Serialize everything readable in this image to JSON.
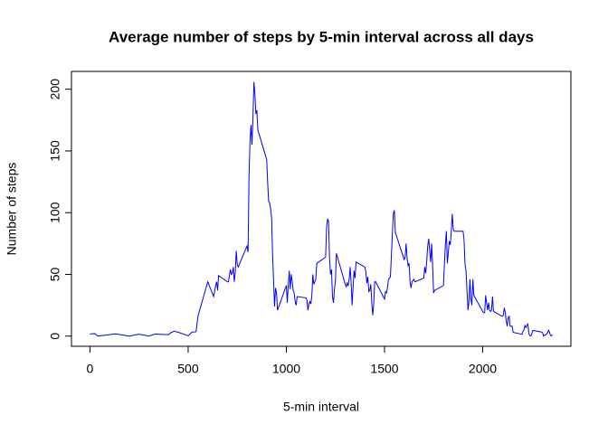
{
  "chart_data": {
    "type": "line",
    "title": "Average number of steps by 5-min interval across all days",
    "x_label": "5-min interval",
    "y_label": "Number of steps",
    "xlim": [
      -94.2,
      2449.2
    ],
    "ylim": [
      -8.25,
      214.42
    ],
    "xticks": [
      0,
      500,
      1000,
      1500,
      2000
    ],
    "yticks": [
      0,
      50,
      100,
      150,
      200
    ],
    "series": [
      {
        "color": "#0000ff",
        "x": [
          0,
          25,
          40,
          130,
          200,
          250,
          300,
          330,
          400,
          410,
          430,
          440,
          450,
          500,
          520,
          540,
          550,
          555,
          600,
          610,
          620,
          630,
          640,
          645,
          650,
          655,
          700,
          705,
          715,
          720,
          725,
          730,
          735,
          740,
          745,
          750,
          755,
          800,
          805,
          810,
          815,
          820,
          825,
          830,
          835,
          840,
          845,
          850,
          855,
          900,
          905,
          910,
          915,
          920,
          925,
          930,
          935,
          940,
          945,
          950,
          955,
          1000,
          1005,
          1010,
          1015,
          1020,
          1025,
          1030,
          1035,
          1040,
          1045,
          1050,
          1055,
          1100,
          1105,
          1110,
          1115,
          1120,
          1125,
          1130,
          1135,
          1140,
          1145,
          1150,
          1155,
          1200,
          1205,
          1210,
          1215,
          1220,
          1225,
          1230,
          1235,
          1240,
          1245,
          1250,
          1255,
          1300,
          1305,
          1310,
          1315,
          1320,
          1325,
          1330,
          1335,
          1340,
          1345,
          1350,
          1355,
          1400,
          1405,
          1410,
          1415,
          1420,
          1425,
          1430,
          1435,
          1440,
          1445,
          1450,
          1455,
          1500,
          1505,
          1510,
          1515,
          1520,
          1525,
          1530,
          1535,
          1540,
          1545,
          1550,
          1555,
          1600,
          1605,
          1610,
          1615,
          1620,
          1625,
          1630,
          1635,
          1640,
          1645,
          1650,
          1655,
          1700,
          1705,
          1710,
          1715,
          1720,
          1725,
          1730,
          1735,
          1740,
          1745,
          1750,
          1755,
          1800,
          1805,
          1810,
          1815,
          1820,
          1825,
          1830,
          1835,
          1840,
          1845,
          1850,
          1855,
          1900,
          1905,
          1910,
          1915,
          1920,
          1925,
          1930,
          1935,
          1940,
          1945,
          1950,
          1955,
          2000,
          2005,
          2010,
          2015,
          2020,
          2025,
          2030,
          2035,
          2040,
          2045,
          2050,
          2055,
          2100,
          2105,
          2110,
          2115,
          2120,
          2125,
          2130,
          2135,
          2140,
          2145,
          2150,
          2155,
          2200,
          2205,
          2210,
          2215,
          2220,
          2225,
          2230,
          2235,
          2240,
          2245,
          2250,
          2255,
          2300,
          2305,
          2310,
          2315,
          2320,
          2325,
          2330,
          2335,
          2340,
          2345,
          2350,
          2355
        ],
        "values": [
          1.7,
          2.1,
          0,
          1.8,
          0,
          1.5,
          0,
          1.6,
          1.2,
          2.6,
          4.1,
          3.5,
          3.1,
          0.3,
          3.3,
          3.5,
          16,
          19,
          44,
          40,
          36,
          32,
          41,
          44,
          37,
          49,
          44,
          44,
          54,
          50,
          51,
          56,
          44,
          52,
          69,
          58,
          56,
          73,
          68,
          129,
          158,
          171,
          155,
          177,
          206,
          196,
          180,
          183,
          167,
          143,
          124,
          109,
          108,
          103,
          96,
          66,
          45,
          24,
          39,
          35,
          21,
          41,
          27,
          42,
          53,
          38,
          50,
          44,
          37,
          35,
          28,
          25,
          32,
          31,
          29,
          21,
          26,
          28,
          26,
          33,
          50,
          42,
          44,
          46,
          59,
          64,
          88,
          95,
          93,
          63,
          50,
          54,
          32,
          27,
          38,
          45,
          67,
          42,
          40,
          43,
          41,
          46,
          56,
          43,
          25,
          40,
          53,
          47,
          60,
          56,
          52,
          43,
          48,
          36,
          37,
          42,
          27,
          17,
          26,
          44,
          44,
          30,
          36,
          35,
          39,
          46,
          47,
          48,
          65,
          83,
          99,
          102,
          84,
          62,
          64,
          75,
          63,
          57,
          59,
          44,
          39,
          44,
          45,
          46,
          44,
          47,
          56,
          51,
          61,
          73,
          79,
          69,
          60,
          75,
          57,
          35,
          37,
          41,
          58,
          74,
          85,
          59,
          68,
          77,
          74,
          85,
          99,
          87,
          85,
          85,
          78,
          58,
          53,
          37,
          21,
          28,
          46,
          30,
          25,
          46,
          33,
          20,
          19,
          19,
          33,
          27,
          21,
          27,
          21,
          20,
          21,
          32,
          20,
          16,
          17,
          23,
          19,
          12,
          8,
          15,
          16,
          8,
          8,
          8,
          3,
          1.5,
          4,
          5,
          8.5,
          7,
          8.7,
          9.8,
          2.2,
          0.3,
          0.1,
          1.6,
          4.6,
          3.3,
          2.8,
          0,
          0.8,
          1,
          1.6,
          2.6,
          4.7,
          3.3,
          0.6,
          0.2,
          1.1
        ]
      }
    ]
  }
}
